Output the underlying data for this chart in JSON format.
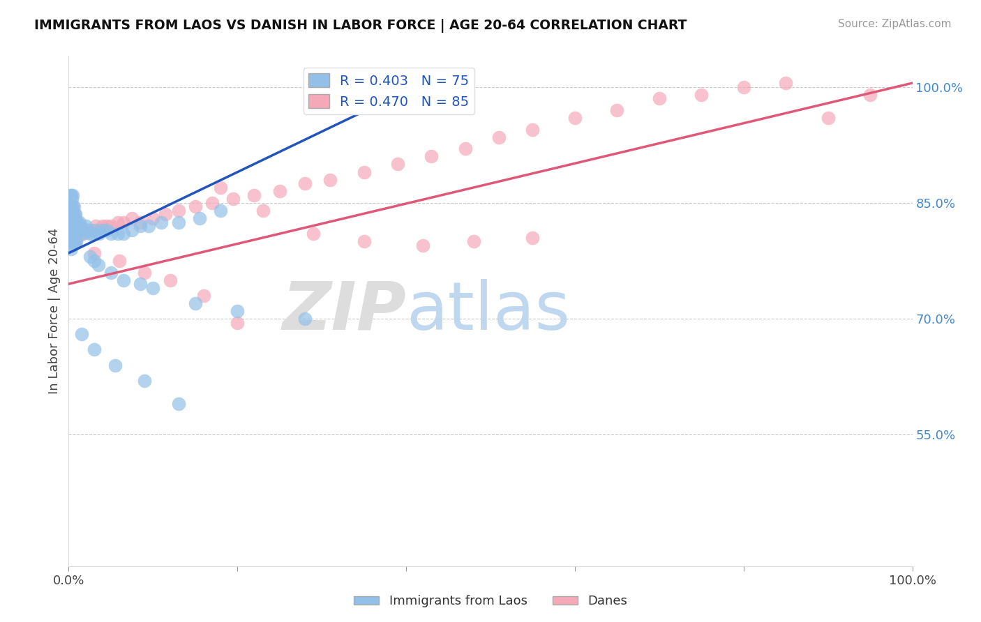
{
  "title": "IMMIGRANTS FROM LAOS VS DANISH IN LABOR FORCE | AGE 20-64 CORRELATION CHART",
  "source": "Source: ZipAtlas.com",
  "ylabel": "In Labor Force | Age 20-64",
  "xlim": [
    0.0,
    1.0
  ],
  "ylim": [
    0.38,
    1.04
  ],
  "yticks": [
    0.55,
    0.7,
    0.85,
    1.0
  ],
  "ytick_labels": [
    "55.0%",
    "70.0%",
    "85.0%",
    "100.0%"
  ],
  "xtick_labels_left": "0.0%",
  "xtick_labels_right": "100.0%",
  "blue_R": 0.403,
  "blue_N": 75,
  "pink_R": 0.47,
  "pink_N": 85,
  "blue_color": "#92c0e8",
  "pink_color": "#f4a8b8",
  "blue_line_color": "#2255bb",
  "pink_line_color": "#e05878",
  "legend_label_blue": "Immigrants from Laos",
  "legend_label_pink": "Danes",
  "blue_line_x": [
    0.0,
    0.42
  ],
  "blue_line_y": [
    0.785,
    1.005
  ],
  "pink_line_x": [
    0.0,
    1.0
  ],
  "pink_line_y": [
    0.745,
    1.005
  ],
  "blue_scatter_x": [
    0.001,
    0.001,
    0.002,
    0.002,
    0.002,
    0.002,
    0.003,
    0.003,
    0.003,
    0.003,
    0.003,
    0.004,
    0.004,
    0.004,
    0.004,
    0.004,
    0.005,
    0.005,
    0.005,
    0.005,
    0.005,
    0.006,
    0.006,
    0.006,
    0.006,
    0.007,
    0.007,
    0.007,
    0.008,
    0.008,
    0.008,
    0.009,
    0.009,
    0.01,
    0.01,
    0.011,
    0.012,
    0.013,
    0.014,
    0.015,
    0.016,
    0.018,
    0.02,
    0.022,
    0.025,
    0.028,
    0.032,
    0.036,
    0.04,
    0.045,
    0.05,
    0.058,
    0.065,
    0.075,
    0.085,
    0.095,
    0.11,
    0.13,
    0.155,
    0.18,
    0.025,
    0.03,
    0.035,
    0.05,
    0.065,
    0.085,
    0.1,
    0.15,
    0.2,
    0.28,
    0.015,
    0.03,
    0.055,
    0.09,
    0.13
  ],
  "blue_scatter_y": [
    0.82,
    0.84,
    0.825,
    0.84,
    0.85,
    0.86,
    0.79,
    0.81,
    0.825,
    0.84,
    0.86,
    0.795,
    0.81,
    0.825,
    0.84,
    0.855,
    0.8,
    0.815,
    0.83,
    0.845,
    0.86,
    0.8,
    0.815,
    0.83,
    0.845,
    0.805,
    0.82,
    0.835,
    0.8,
    0.82,
    0.835,
    0.8,
    0.82,
    0.81,
    0.825,
    0.815,
    0.82,
    0.825,
    0.82,
    0.815,
    0.81,
    0.815,
    0.82,
    0.815,
    0.81,
    0.81,
    0.815,
    0.81,
    0.815,
    0.815,
    0.81,
    0.81,
    0.81,
    0.815,
    0.82,
    0.82,
    0.825,
    0.825,
    0.83,
    0.84,
    0.78,
    0.775,
    0.77,
    0.76,
    0.75,
    0.745,
    0.74,
    0.72,
    0.71,
    0.7,
    0.68,
    0.66,
    0.64,
    0.62,
    0.59
  ],
  "pink_scatter_x": [
    0.001,
    0.001,
    0.002,
    0.002,
    0.002,
    0.003,
    0.003,
    0.003,
    0.003,
    0.004,
    0.004,
    0.004,
    0.005,
    0.005,
    0.005,
    0.005,
    0.006,
    0.006,
    0.006,
    0.007,
    0.007,
    0.007,
    0.008,
    0.008,
    0.008,
    0.009,
    0.009,
    0.01,
    0.01,
    0.011,
    0.012,
    0.013,
    0.014,
    0.015,
    0.017,
    0.019,
    0.022,
    0.025,
    0.028,
    0.032,
    0.036,
    0.04,
    0.045,
    0.05,
    0.058,
    0.065,
    0.075,
    0.085,
    0.1,
    0.115,
    0.13,
    0.15,
    0.17,
    0.195,
    0.22,
    0.25,
    0.28,
    0.31,
    0.35,
    0.39,
    0.43,
    0.47,
    0.51,
    0.55,
    0.6,
    0.65,
    0.7,
    0.75,
    0.8,
    0.85,
    0.9,
    0.95,
    0.18,
    0.23,
    0.29,
    0.35,
    0.42,
    0.48,
    0.55,
    0.03,
    0.06,
    0.09,
    0.12,
    0.16,
    0.2
  ],
  "pink_scatter_y": [
    0.81,
    0.825,
    0.8,
    0.815,
    0.83,
    0.8,
    0.815,
    0.83,
    0.845,
    0.8,
    0.815,
    0.83,
    0.8,
    0.815,
    0.83,
    0.845,
    0.8,
    0.815,
    0.83,
    0.8,
    0.815,
    0.83,
    0.8,
    0.815,
    0.83,
    0.8,
    0.815,
    0.81,
    0.825,
    0.81,
    0.81,
    0.815,
    0.81,
    0.815,
    0.81,
    0.815,
    0.815,
    0.815,
    0.815,
    0.82,
    0.815,
    0.82,
    0.82,
    0.82,
    0.825,
    0.825,
    0.83,
    0.825,
    0.83,
    0.835,
    0.84,
    0.845,
    0.85,
    0.855,
    0.86,
    0.865,
    0.875,
    0.88,
    0.89,
    0.9,
    0.91,
    0.92,
    0.935,
    0.945,
    0.96,
    0.97,
    0.985,
    0.99,
    1.0,
    1.005,
    0.96,
    0.99,
    0.87,
    0.84,
    0.81,
    0.8,
    0.795,
    0.8,
    0.805,
    0.785,
    0.775,
    0.76,
    0.75,
    0.73,
    0.695
  ]
}
